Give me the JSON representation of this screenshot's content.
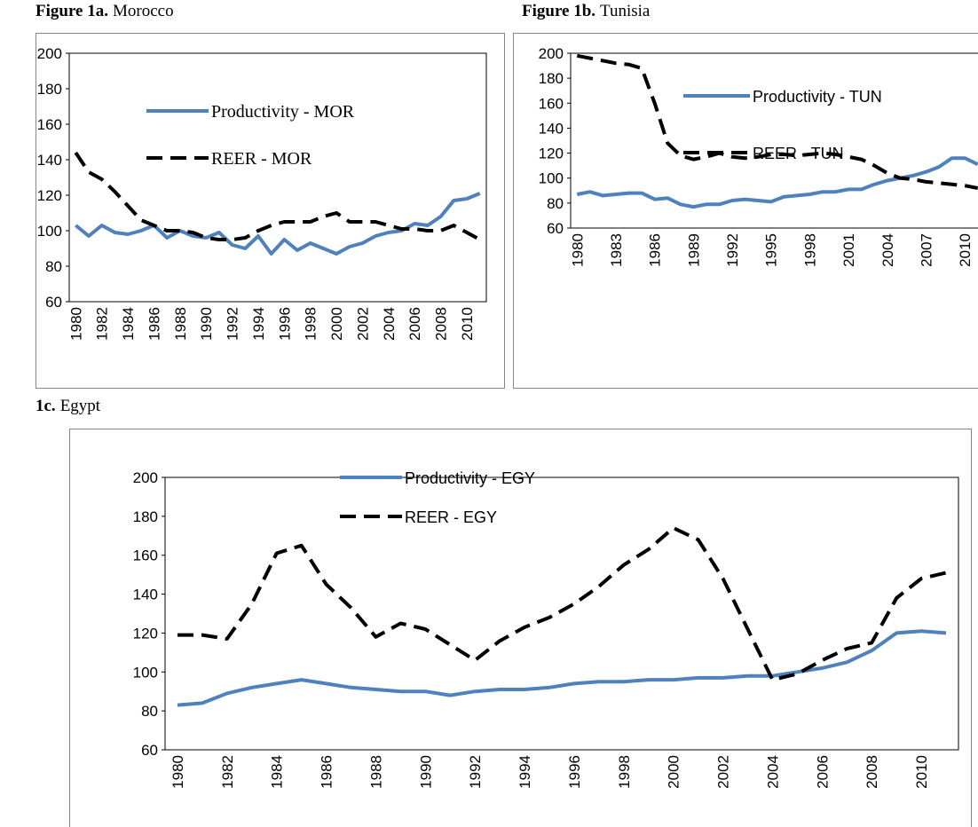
{
  "chart_data": [
    {
      "type": "line",
      "figure_label": "Figure 1a.",
      "title": "Morocco",
      "categories": [
        "1980",
        null,
        "1982",
        null,
        "1984",
        null,
        "1986",
        null,
        "1988",
        null,
        "1990",
        null,
        "1992",
        null,
        "1994",
        null,
        "1996",
        null,
        "1998",
        null,
        "2000",
        null,
        "2002",
        null,
        "2004",
        null,
        "2006",
        null,
        "2008",
        null,
        "2010",
        null
      ],
      "ylim": [
        60,
        200
      ],
      "yticks": [
        60,
        80,
        100,
        120,
        140,
        160,
        180,
        200
      ],
      "series": [
        {
          "name": "Productivity - MOR",
          "color": "#4f81bd",
          "style": "solid",
          "values": [
            103,
            97,
            103,
            99,
            98,
            100,
            103,
            96,
            100,
            97,
            96,
            99,
            92,
            90,
            97,
            87,
            95,
            89,
            93,
            90,
            87,
            91,
            93,
            97,
            99,
            100,
            104,
            103,
            108,
            117,
            118,
            121
          ]
        },
        {
          "name": "REER - MOR",
          "color": "#000000",
          "style": "dashed",
          "values": [
            144,
            133,
            129,
            122,
            114,
            106,
            103,
            100,
            100,
            99,
            96,
            95,
            95,
            96,
            100,
            103,
            105,
            105,
            105,
            108,
            110,
            105,
            105,
            105,
            103,
            101,
            101,
            100,
            100,
            103,
            99,
            95
          ]
        }
      ]
    },
    {
      "type": "line",
      "figure_label": "Figure 1b.",
      "title": "Tunisia",
      "categories": [
        "1980",
        null,
        null,
        "1983",
        null,
        null,
        "1986",
        null,
        null,
        "1989",
        null,
        null,
        "1992",
        null,
        null,
        "1995",
        null,
        null,
        "1998",
        null,
        null,
        "2001",
        null,
        null,
        "2004",
        null,
        null,
        "2007",
        null,
        null,
        "2010",
        null
      ],
      "ylim": [
        60,
        200
      ],
      "yticks": [
        60,
        80,
        100,
        120,
        140,
        160,
        180,
        200
      ],
      "series": [
        {
          "name": "Productivity - TUN",
          "color": "#4f81bd",
          "style": "solid",
          "values": [
            87,
            89,
            86,
            87,
            88,
            88,
            83,
            84,
            79,
            77,
            79,
            79,
            82,
            83,
            82,
            81,
            85,
            86,
            87,
            89,
            89,
            91,
            91,
            95,
            98,
            100,
            102,
            105,
            109,
            116,
            116,
            111
          ]
        },
        {
          "name": "REER - TUN",
          "color": "#000000",
          "style": "dashed",
          "values": [
            198,
            196,
            194,
            192,
            191,
            188,
            160,
            128,
            118,
            115,
            117,
            120,
            117,
            116,
            117,
            119,
            119,
            118,
            119,
            120,
            119,
            117,
            115,
            110,
            104,
            100,
            99,
            97,
            96,
            95,
            94,
            92
          ]
        }
      ]
    },
    {
      "type": "line",
      "figure_label": "1c.",
      "title": "Egypt",
      "categories": [
        "1980",
        null,
        "1982",
        null,
        "1984",
        null,
        "1986",
        null,
        "1988",
        null,
        "1990",
        null,
        "1992",
        null,
        "1994",
        null,
        "1996",
        null,
        "1998",
        null,
        "2000",
        null,
        "2002",
        null,
        "2004",
        null,
        "2006",
        null,
        "2008",
        null,
        "2010",
        null
      ],
      "ylim": [
        60,
        200
      ],
      "yticks": [
        60,
        80,
        100,
        120,
        140,
        160,
        180,
        200
      ],
      "series": [
        {
          "name": "Productivity - EGY",
          "color": "#4f81bd",
          "style": "solid",
          "values": [
            83,
            84,
            89,
            92,
            94,
            96,
            94,
            92,
            91,
            90,
            90,
            88,
            90,
            91,
            91,
            92,
            94,
            95,
            95,
            96,
            96,
            97,
            97,
            98,
            98,
            100,
            102,
            105,
            111,
            120,
            121,
            120
          ]
        },
        {
          "name": "REER - EGY",
          "color": "#000000",
          "style": "dashed",
          "values": [
            119,
            119,
            117,
            135,
            161,
            165,
            145,
            133,
            118,
            125,
            122,
            114,
            106,
            116,
            123,
            128,
            135,
            144,
            155,
            163,
            174,
            168,
            148,
            122,
            96,
            99,
            106,
            112,
            115,
            138,
            148,
            151
          ]
        }
      ]
    }
  ]
}
